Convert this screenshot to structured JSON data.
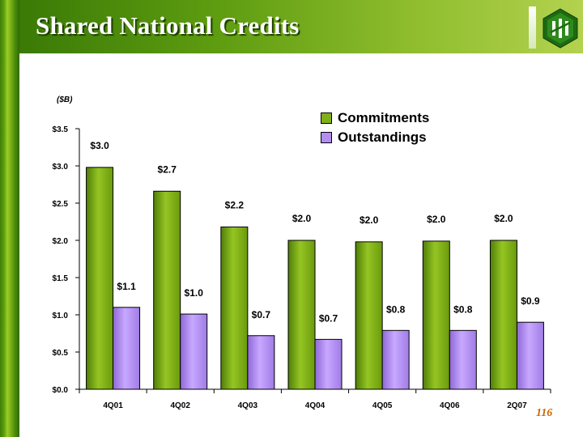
{
  "slide": {
    "title": "Shared National Credits",
    "page_number": "116"
  },
  "icons": {
    "logo": "bank-logo-icon"
  },
  "colors": {
    "commitments": "#7fb015",
    "outstandings": "#b38ef0"
  },
  "chart_data": {
    "type": "bar",
    "unit_label": "($B)",
    "categories": [
      "4Q01",
      "4Q02",
      "4Q03",
      "4Q04",
      "4Q05",
      "4Q06",
      "2Q07"
    ],
    "series": [
      {
        "name": "Commitments",
        "values": [
          2.98,
          2.66,
          2.18,
          2.0,
          1.98,
          1.99,
          2.0
        ],
        "labels": [
          "$3.0",
          "$2.7",
          "$2.2",
          "$2.0",
          "$2.0",
          "$2.0",
          "$2.0"
        ]
      },
      {
        "name": "Outstandings",
        "values": [
          1.1,
          1.01,
          0.72,
          0.67,
          0.79,
          0.79,
          0.9
        ],
        "labels": [
          "$1.1",
          "$1.0",
          "$0.7",
          "$0.7",
          "$0.8",
          "$0.8",
          "$0.9"
        ]
      }
    ],
    "ylim": [
      0,
      3.5
    ],
    "yticks": [
      0,
      0.5,
      1.0,
      1.5,
      2.0,
      2.5,
      3.0,
      3.5
    ],
    "ytick_labels": [
      "$0.0",
      "$0.5",
      "$1.0",
      "$1.5",
      "$2.0",
      "$2.5",
      "$3.0",
      "$3.5"
    ],
    "grid": false,
    "legend_position": "top-right"
  }
}
